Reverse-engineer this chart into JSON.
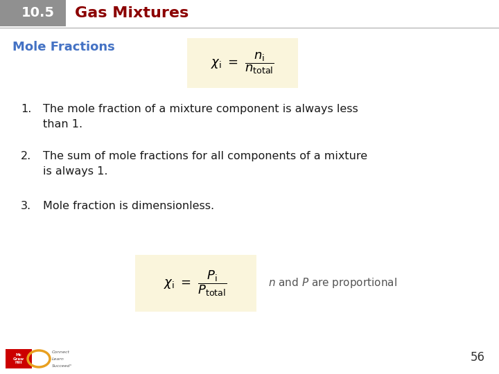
{
  "title_num": "10.5",
  "title_text": "Gas Mixtures",
  "title_num_bg": "#909090",
  "title_num_color": "#ffffff",
  "title_text_color": "#8B0000",
  "section_title": "Mole Fractions",
  "section_title_color": "#4472C4",
  "formula1_box_color": "#FAF5DC",
  "formula2_box_color": "#FAF5DC",
  "body_text_color": "#1a1a1a",
  "item1_line1": "The mole fraction of a mixture component is always less",
  "item1_line2": "than 1.",
  "item2_line1": "The sum of mole fractions for all components of a mixture",
  "item2_line2": "is always 1.",
  "item3": "Mole fraction is dimensionless.",
  "page_number": "56",
  "bg_color": "#ffffff",
  "header_line_color": "#aaaaaa",
  "header_bg": "#909090",
  "header_triangle_color": "#707070"
}
